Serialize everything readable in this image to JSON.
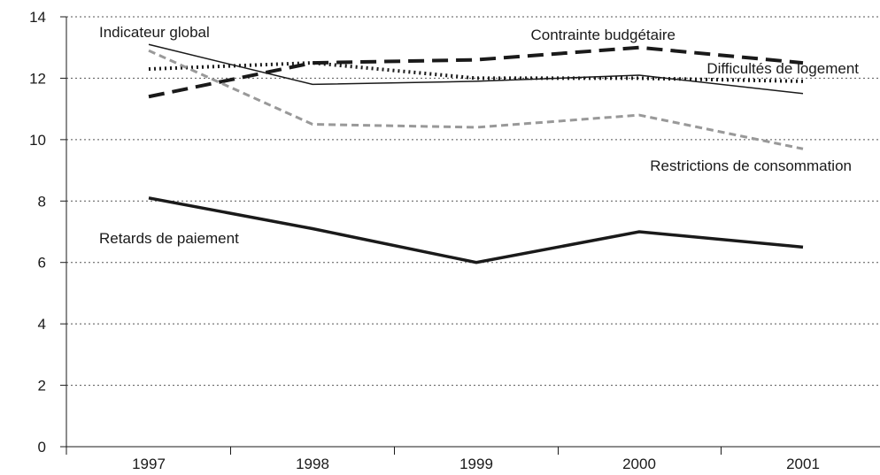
{
  "chart_data": {
    "type": "line",
    "title": "",
    "xlabel": "",
    "ylabel": "",
    "categories": [
      "1997",
      "1998",
      "1999",
      "2000",
      "2001"
    ],
    "ylim": [
      0,
      14
    ],
    "yticks": [
      0,
      2,
      4,
      6,
      8,
      10,
      12,
      14
    ],
    "grid": "horizontal dotted",
    "legend": "inline labels",
    "series": [
      {
        "name": "Indicateur global",
        "values": [
          13.1,
          11.8,
          11.9,
          12.1,
          11.5
        ],
        "color": "#1a1a1a",
        "style": "thin-solid"
      },
      {
        "name": "Contrainte budgétaire",
        "values": [
          11.4,
          12.5,
          12.6,
          13.0,
          12.5
        ],
        "color": "#1a1a1a",
        "style": "long-dash"
      },
      {
        "name": "Difficultés de logement",
        "values": [
          12.3,
          12.5,
          12.0,
          12.0,
          11.9
        ],
        "color": "#1a1a1a",
        "style": "dotted"
      },
      {
        "name": "Restrictions de consommation",
        "values": [
          12.9,
          10.5,
          10.4,
          10.8,
          9.7
        ],
        "color": "#999999",
        "style": "grey-dash"
      },
      {
        "name": "Retards de paiement",
        "values": [
          8.1,
          7.1,
          6.0,
          7.0,
          6.5
        ],
        "color": "#1a1a1a",
        "style": "thick-solid"
      }
    ]
  }
}
